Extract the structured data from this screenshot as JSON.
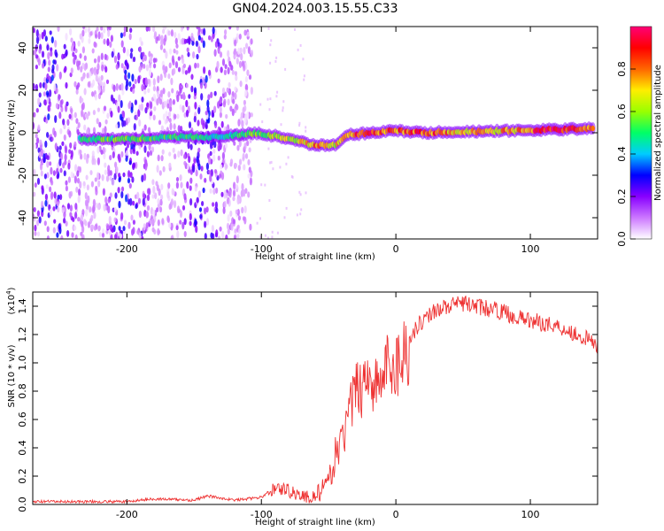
{
  "title": "GN04.2024.003.15.55.C33",
  "chart_data": [
    {
      "type": "heatmap",
      "xlabel": "Height of straight line (km)",
      "ylabel": "Frequency (Hz)",
      "xlim": [
        -270,
        150
      ],
      "ylim": [
        -50,
        50
      ],
      "xticks": [
        -200,
        -100,
        0,
        100
      ],
      "yticks": [
        -40,
        -20,
        0,
        20,
        40
      ],
      "colorbar": {
        "label": "Normalized spectral amplitude",
        "range": [
          0,
          1
        ],
        "ticks": [
          "0.0",
          "0.2",
          "0.4",
          "0.6",
          "0.8"
        ],
        "colors": [
          "#ffffff",
          "#cc77ff",
          "#8800ff",
          "#0000ff",
          "#00ccff",
          "#00ff66",
          "#99ff00",
          "#ffee00",
          "#ff6600",
          "#ff0000",
          "#ff0077"
        ]
      },
      "signal_track": [
        {
          "x": -235,
          "y": -3,
          "amp": 0.5
        },
        {
          "x": -200,
          "y": -3,
          "amp": 0.55
        },
        {
          "x": -170,
          "y": -2,
          "amp": 0.5
        },
        {
          "x": -130,
          "y": -2,
          "amp": 0.45
        },
        {
          "x": -105,
          "y": 0,
          "amp": 0.55
        },
        {
          "x": -85,
          "y": -2,
          "amp": 0.6
        },
        {
          "x": -60,
          "y": -6,
          "amp": 0.75
        },
        {
          "x": -45,
          "y": -6,
          "amp": 0.65
        },
        {
          "x": -35,
          "y": -1,
          "amp": 0.8
        },
        {
          "x": -20,
          "y": 0,
          "amp": 0.85
        },
        {
          "x": 0,
          "y": 1,
          "amp": 0.8
        },
        {
          "x": 20,
          "y": 0,
          "amp": 0.85
        },
        {
          "x": 50,
          "y": 0.5,
          "amp": 0.7
        },
        {
          "x": 90,
          "y": 1,
          "amp": 0.75
        },
        {
          "x": 120,
          "y": 1.5,
          "amp": 0.95
        },
        {
          "x": 148,
          "y": 2,
          "amp": 0.7
        }
      ]
    },
    {
      "type": "line",
      "xlabel": "Height of straight line (km)",
      "ylabel": "SNR (10 * v/v)",
      "ylabel_multiplier": "(x10",
      "ylabel_multiplier_exponent": "4",
      "xlim": [
        -270,
        150
      ],
      "ylim": [
        0,
        1.5
      ],
      "xticks": [
        -200,
        -100,
        0,
        100
      ],
      "yticks": [
        "0.0",
        "0.2",
        "0.4",
        "0.6",
        "0.8",
        "1.0",
        "1.2",
        "1.4"
      ],
      "color": "#ee3333",
      "series": [
        {
          "x": [
            -270,
            -200,
            -180,
            -150,
            -140,
            -120,
            -100,
            -90,
            -80,
            -70,
            -65,
            -60,
            -55,
            -50,
            -45,
            -40,
            -35,
            -30,
            -25,
            -20,
            -15,
            -10,
            -5,
            0,
            5,
            10,
            15,
            20,
            25,
            30,
            40,
            50,
            60,
            70,
            80,
            90,
            100,
            110,
            120,
            130,
            140,
            150
          ],
          "y": [
            0.02,
            0.02,
            0.04,
            0.03,
            0.06,
            0.03,
            0.05,
            0.12,
            0.1,
            0.06,
            0.05,
            0.06,
            0.1,
            0.15,
            0.35,
            0.45,
            0.62,
            0.8,
            0.85,
            0.95,
            0.82,
            0.9,
            1.0,
            0.98,
            1.05,
            1.15,
            1.25,
            1.3,
            1.34,
            1.38,
            1.4,
            1.42,
            1.4,
            1.38,
            1.36,
            1.32,
            1.3,
            1.28,
            1.26,
            1.22,
            1.18,
            1.12
          ]
        }
      ]
    }
  ]
}
